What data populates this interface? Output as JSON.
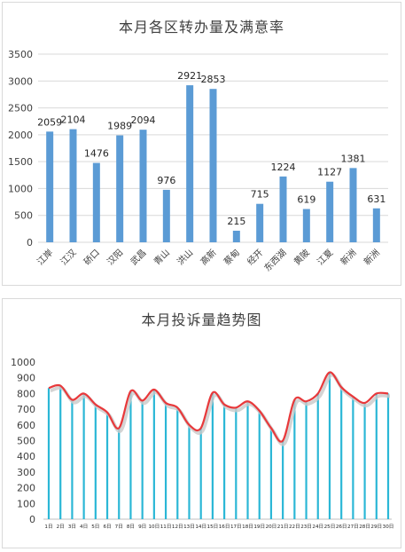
{
  "chart_data": [
    {
      "type": "bar",
      "title": "本月各区转办量及满意率",
      "categories": [
        "江岸",
        "江汉",
        "硚口",
        "汉阳",
        "武昌",
        "青山",
        "洪山",
        "高新",
        "蔡甸",
        "经开",
        "东西湖",
        "黄陂",
        "江夏",
        "新洲",
        "新洲"
      ],
      "values": [
        2059,
        2104,
        1476,
        1989,
        2094,
        976,
        2921,
        2853,
        215,
        715,
        1224,
        619,
        1127,
        1381,
        631
      ],
      "value_labels": [
        "2059",
        "2104",
        "1476",
        "1989",
        "2094",
        "976",
        "2921",
        "2853",
        "215",
        "715",
        "1224",
        "619",
        "1127",
        "1381",
        "631"
      ],
      "ylim": [
        0,
        3500
      ],
      "yticks": [
        "0",
        "500",
        "1000",
        "1500",
        "2000",
        "2500",
        "3000",
        "3500"
      ],
      "grid": true,
      "xlabel": "",
      "ylabel": "",
      "bar_color": "#5b9bd5"
    },
    {
      "type": "line",
      "title": "本月投诉量趋势图",
      "categories": [
        "1日",
        "2日",
        "3日",
        "4日",
        "5日",
        "6日",
        "7日",
        "8日",
        "9日",
        "10日",
        "11日",
        "12日",
        "13日",
        "14日",
        "15日",
        "16日",
        "17日",
        "18日",
        "19日",
        "20日",
        "21日",
        "22日",
        "23日",
        "24日",
        "25日",
        "26日",
        "27日",
        "28日",
        "29日",
        "30日"
      ],
      "series": [
        {
          "values": [
            835,
            850,
            760,
            800,
            730,
            680,
            580,
            815,
            755,
            825,
            740,
            710,
            600,
            580,
            805,
            730,
            710,
            750,
            690,
            580,
            500,
            760,
            750,
            800,
            935,
            840,
            780,
            740,
            800,
            800
          ],
          "style": "line",
          "color": "#e8393b"
        },
        {
          "values": [
            835,
            850,
            760,
            800,
            730,
            680,
            580,
            815,
            755,
            825,
            740,
            710,
            600,
            580,
            805,
            730,
            710,
            750,
            690,
            580,
            500,
            760,
            750,
            800,
            935,
            840,
            780,
            740,
            800,
            800
          ],
          "style": "drop-lines",
          "color": "#2bb7d6"
        }
      ],
      "ylim": [
        0,
        1000
      ],
      "yticks": [
        "0",
        "100",
        "200",
        "300",
        "400",
        "500",
        "600",
        "700",
        "800",
        "900",
        "1000"
      ],
      "grid": false,
      "xlabel": "",
      "ylabel": ""
    }
  ]
}
